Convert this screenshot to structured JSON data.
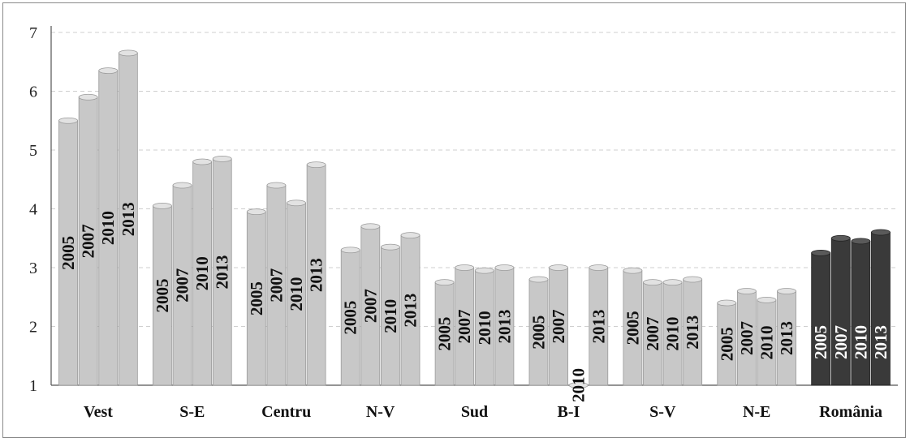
{
  "chart_data": {
    "type": "bar",
    "title": "",
    "xlabel": "",
    "ylabel": "",
    "ylim": [
      1,
      7
    ],
    "yticks": [
      "1",
      "2",
      "3",
      "4",
      "5",
      "6",
      "7"
    ],
    "grid": true,
    "categories": [
      "Vest",
      "S-E",
      "Centru",
      "N-V",
      "Sud",
      "B-I",
      "S-V",
      "N-E",
      "România"
    ],
    "year_labels": [
      "2005",
      "2007",
      "2010",
      "2013"
    ],
    "highlight_category": "România",
    "colors": {
      "bar": "#c8c8c8",
      "bar_stroke": "#9a9a9a",
      "highlight": "#3a3a3a",
      "grid": "#cfcfcf",
      "axis": "#555555"
    },
    "series": [
      {
        "values": [
          5.5,
          4.05,
          3.95,
          3.3,
          2.75,
          2.8,
          2.95,
          2.4,
          3.25
        ]
      },
      {
        "values": [
          5.9,
          4.4,
          4.4,
          3.7,
          3.0,
          3.0,
          2.75,
          2.6,
          3.5
        ]
      },
      {
        "values": [
          6.35,
          4.8,
          4.1,
          3.35,
          2.95,
          1.0,
          2.75,
          2.45,
          3.45
        ]
      },
      {
        "values": [
          6.65,
          4.85,
          4.75,
          3.55,
          3.0,
          3.0,
          2.8,
          2.6,
          3.6
        ]
      }
    ]
  }
}
